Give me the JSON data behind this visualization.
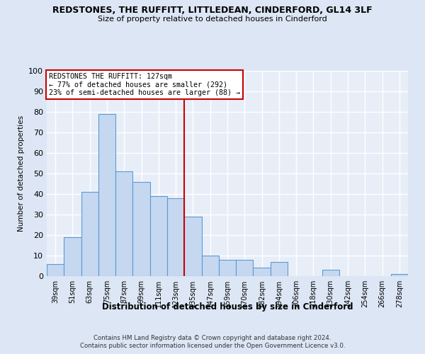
{
  "title": "REDSTONES, THE RUFFITT, LITTLEDEAN, CINDERFORD, GL14 3LF",
  "subtitle": "Size of property relative to detached houses in Cinderford",
  "xlabel": "Distribution of detached houses by size in Cinderford",
  "ylabel": "Number of detached properties",
  "categories": [
    "39sqm",
    "51sqm",
    "63sqm",
    "75sqm",
    "87sqm",
    "99sqm",
    "111sqm",
    "123sqm",
    "135sqm",
    "147sqm",
    "159sqm",
    "170sqm",
    "182sqm",
    "194sqm",
    "206sqm",
    "218sqm",
    "230sqm",
    "242sqm",
    "254sqm",
    "266sqm",
    "278sqm"
  ],
  "values": [
    6,
    19,
    41,
    79,
    51,
    46,
    39,
    38,
    29,
    10,
    8,
    8,
    4,
    7,
    0,
    0,
    3,
    0,
    0,
    0,
    1
  ],
  "bar_color": "#c5d8f0",
  "bar_edge_color": "#5b9bd5",
  "background_color": "#e8eef8",
  "grid_color": "#ffffff",
  "vline_x": 7.5,
  "vline_color": "#cc0000",
  "annotation_line1": "REDSTONES THE RUFFITT: 127sqm",
  "annotation_line2": "← 77% of detached houses are smaller (292)",
  "annotation_line3": "23% of semi-detached houses are larger (88) →",
  "annotation_box_color": "#ffffff",
  "annotation_box_edge": "#cc0000",
  "ylim": [
    0,
    100
  ],
  "yticks": [
    0,
    10,
    20,
    30,
    40,
    50,
    60,
    70,
    80,
    90,
    100
  ],
  "footer1": "Contains HM Land Registry data © Crown copyright and database right 2024.",
  "footer2": "Contains public sector information licensed under the Open Government Licence v3.0.",
  "fig_bg": "#dce6f5"
}
